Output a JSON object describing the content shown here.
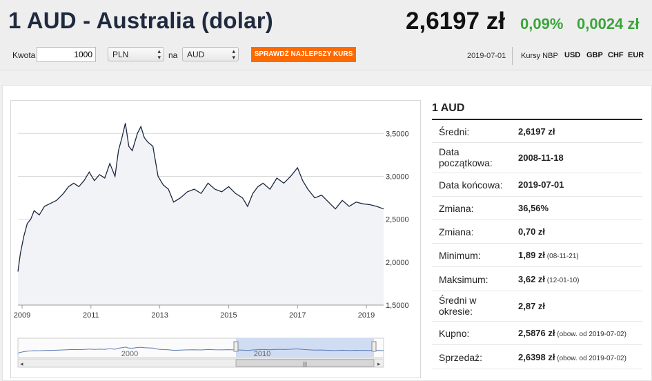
{
  "header": {
    "title": "1 AUD - Australia (dolar)",
    "rate": "2,6197 zł",
    "change_pct": "0,09%",
    "change_abs": "0,0024 zł",
    "colors": {
      "positive": "#3aa53a",
      "button": "#ff6a00",
      "title": "#1f2a3f"
    }
  },
  "form": {
    "amount_label": "Kwota",
    "amount_value": "1000",
    "from_currency": "PLN",
    "na_label": "na",
    "to_currency": "AUD",
    "button_label": "SPRAWDŹ NAJLEPSZY KURS"
  },
  "top_right": {
    "date": "2019-07-01",
    "kursy_label": "Kursy NBP",
    "currencies": [
      "USD",
      "GBP",
      "CHF",
      "EUR"
    ]
  },
  "info": {
    "title": "1 AUD",
    "rows": [
      {
        "label": "Średni:",
        "value": "2,6197 zł",
        "note": ""
      },
      {
        "label": "Data początkowa:",
        "value": "2008-11-18",
        "note": ""
      },
      {
        "label": "Data końcowa:",
        "value": "2019-07-01",
        "note": ""
      },
      {
        "label": "Zmiana:",
        "value": "36,56%",
        "note": ""
      },
      {
        "label": "Zmiana:",
        "value": "0,70 zł",
        "note": ""
      },
      {
        "label": "Minimum:",
        "value": "1,89 zł",
        "note": "(08-11-21)"
      },
      {
        "label": "Maksimum:",
        "value": "3,62 zł",
        "note": "(12-01-10)"
      },
      {
        "label": "Średni w okresie:",
        "value": "2,87 zł",
        "note": ""
      },
      {
        "label": "Kupno:",
        "value": "2,5876 zł",
        "note": "(obow. od 2019-07-02)"
      },
      {
        "label": "Sprzedaż:",
        "value": "2,6398 zł",
        "note": "(obow. od 2019-07-02)"
      }
    ]
  },
  "chart_data": {
    "type": "area",
    "title": "",
    "xlabel": "",
    "ylabel": "",
    "x_ticks": [
      "2009",
      "2011",
      "2013",
      "2015",
      "2017",
      "2019"
    ],
    "y_ticks": [
      "1,5000",
      "2,0000",
      "2,5000",
      "3,0000",
      "3,5000"
    ],
    "xlim": [
      2008.88,
      2019.5
    ],
    "ylim": [
      1.5,
      3.8
    ],
    "grid": true,
    "series": [
      {
        "x": [
          2008.88,
          2008.95,
          2009.05,
          2009.15,
          2009.25,
          2009.35,
          2009.5,
          2009.65,
          2009.8,
          2010.0,
          2010.2,
          2010.35,
          2010.5,
          2010.65,
          2010.8,
          2010.95,
          2011.1,
          2011.25,
          2011.4,
          2011.55,
          2011.7,
          2011.8,
          2011.9,
          2012.0,
          2012.1,
          2012.2,
          2012.35,
          2012.45,
          2012.55,
          2012.65,
          2012.8,
          2012.95,
          2013.1,
          2013.25,
          2013.4,
          2013.6,
          2013.8,
          2014.0,
          2014.2,
          2014.4,
          2014.6,
          2014.8,
          2015.0,
          2015.2,
          2015.4,
          2015.55,
          2015.7,
          2015.85,
          2016.0,
          2016.2,
          2016.4,
          2016.6,
          2016.8,
          2016.9,
          2017.0,
          2017.15,
          2017.3,
          2017.5,
          2017.7,
          2017.9,
          2018.1,
          2018.3,
          2018.5,
          2018.7,
          2018.9,
          2019.1,
          2019.3,
          2019.5
        ],
        "y": [
          1.89,
          2.1,
          2.3,
          2.45,
          2.5,
          2.6,
          2.55,
          2.65,
          2.68,
          2.72,
          2.8,
          2.88,
          2.92,
          2.88,
          2.95,
          3.05,
          2.95,
          3.02,
          2.98,
          3.15,
          3.0,
          3.3,
          3.45,
          3.62,
          3.35,
          3.3,
          3.5,
          3.58,
          3.45,
          3.4,
          3.35,
          3.0,
          2.9,
          2.85,
          2.7,
          2.75,
          2.82,
          2.85,
          2.8,
          2.92,
          2.85,
          2.82,
          2.88,
          2.8,
          2.75,
          2.65,
          2.8,
          2.88,
          2.92,
          2.85,
          2.98,
          2.92,
          3.0,
          3.05,
          3.1,
          2.95,
          2.85,
          2.75,
          2.78,
          2.7,
          2.62,
          2.72,
          2.65,
          2.7,
          2.68,
          2.67,
          2.65,
          2.62
        ]
      }
    ],
    "navigator_ticks": [
      "2000",
      "2010"
    ]
  }
}
